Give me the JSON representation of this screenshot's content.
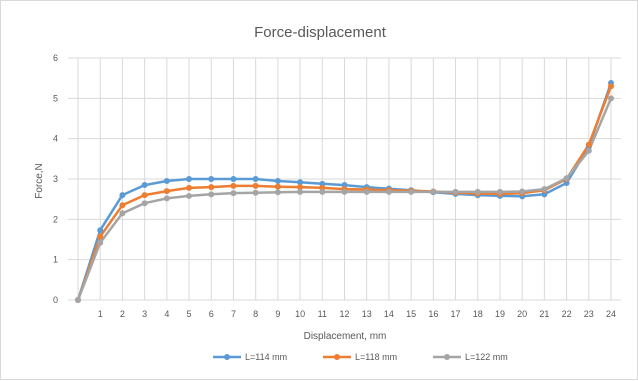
{
  "chart_data": {
    "type": "line",
    "title": "Force-displacement",
    "xlabel": "Displacement, mm",
    "ylabel": "Force,N",
    "ylim": [
      0,
      6
    ],
    "yticks": [
      0,
      1,
      2,
      3,
      4,
      5,
      6
    ],
    "x": [
      0,
      1,
      2,
      3,
      4,
      5,
      6,
      7,
      8,
      9,
      10,
      11,
      12,
      13,
      14,
      15,
      16,
      17,
      18,
      19,
      20,
      21,
      22,
      23,
      24
    ],
    "xtick_labels": [
      "",
      "1",
      "2",
      "3",
      "4",
      "5",
      "6",
      "7",
      "8",
      "9",
      "10",
      "11",
      "12",
      "13",
      "14",
      "15",
      "16",
      "17",
      "18",
      "19",
      "20",
      "21",
      "22",
      "23",
      "24"
    ],
    "grid": true,
    "legend_position": "bottom",
    "series": [
      {
        "name": "L=114 mm",
        "color": "#5b9bd5",
        "values": [
          0,
          1.73,
          2.6,
          2.85,
          2.95,
          3.0,
          3.0,
          3.0,
          3.0,
          2.95,
          2.92,
          2.88,
          2.85,
          2.8,
          2.76,
          2.72,
          2.67,
          2.63,
          2.6,
          2.58,
          2.57,
          2.62,
          2.9,
          3.8,
          5.38
        ]
      },
      {
        "name": "L=118 mm",
        "color": "#ed7d31",
        "values": [
          0,
          1.57,
          2.35,
          2.6,
          2.7,
          2.78,
          2.8,
          2.83,
          2.83,
          2.81,
          2.8,
          2.78,
          2.75,
          2.74,
          2.72,
          2.71,
          2.69,
          2.66,
          2.64,
          2.63,
          2.65,
          2.72,
          3.0,
          3.85,
          5.3
        ]
      },
      {
        "name": "L=122 mm",
        "color": "#a5a5a5",
        "values": [
          0,
          1.42,
          2.15,
          2.4,
          2.52,
          2.58,
          2.62,
          2.65,
          2.66,
          2.67,
          2.68,
          2.68,
          2.68,
          2.68,
          2.68,
          2.68,
          2.68,
          2.68,
          2.68,
          2.68,
          2.69,
          2.75,
          3.02,
          3.7,
          5.0
        ]
      }
    ]
  }
}
